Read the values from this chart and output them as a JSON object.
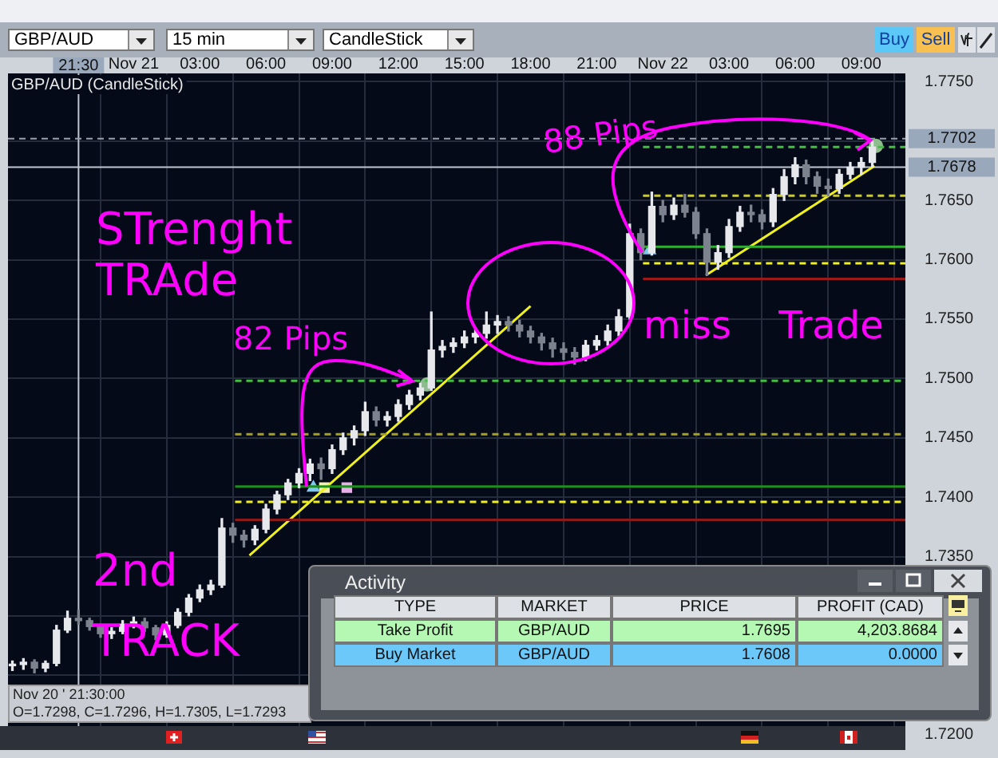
{
  "chart_data": {
    "type": "candlestick",
    "title": "GBP/AUD (CandleStick)",
    "x": [
      "--11-20T18:30",
      "--11-20T19:00",
      "--11-20T19:30",
      "--11-20T20:00",
      "--11-20T20:30",
      "--11-20T21:00",
      "--11-20T21:30",
      "--11-20T22:00",
      "--11-20T22:30",
      "--11-20T23:00",
      "--11-20T23:30",
      "--11-21T00:00",
      "--11-21T00:30",
      "--11-21T01:00",
      "--11-21T01:30",
      "--11-21T02:00",
      "--11-21T02:30",
      "--11-21T03:00",
      "--11-21T03:30",
      "--11-21T04:00",
      "--11-21T04:30",
      "--11-21T05:00",
      "--11-21T05:30",
      "--11-21T06:00",
      "--11-21T06:30",
      "--11-21T07:00",
      "--11-21T07:30",
      "--11-21T08:00",
      "--11-21T08:30",
      "--11-21T09:00",
      "--11-21T09:30",
      "--11-21T10:00",
      "--11-21T10:30",
      "--11-21T11:00",
      "--11-21T11:30",
      "--11-21T12:00",
      "--11-21T12:30",
      "--11-21T13:00",
      "--11-21T13:30",
      "--11-21T14:00",
      "--11-21T14:30",
      "--11-21T15:00",
      "--11-21T15:30",
      "--11-21T16:00",
      "--11-21T16:30",
      "--11-21T17:00",
      "--11-21T17:30",
      "--11-21T18:00",
      "--11-21T18:30",
      "--11-21T19:00",
      "--11-21T19:30",
      "--11-21T20:00",
      "--11-21T20:30",
      "--11-21T21:00",
      "--11-21T21:30",
      "--11-21T22:00",
      "--11-21T22:30",
      "--11-21T23:00",
      "--11-21T23:30",
      "--11-22T00:00",
      "--11-22T00:30",
      "--11-22T01:00",
      "--11-22T01:30",
      "--11-22T02:00",
      "--11-22T02:30",
      "--11-22T03:00",
      "--11-22T03:30",
      "--11-22T04:00",
      "--11-22T04:30",
      "--11-22T05:00",
      "--11-22T05:30",
      "--11-22T06:00",
      "--11-22T06:30",
      "--11-22T07:00",
      "--11-22T07:30",
      "--11-22T08:00",
      "--11-22T08:30",
      "--11-22T09:00",
      "--11-22T09:30"
    ],
    "ohlc": [
      [
        1.7258,
        1.7262,
        1.7254,
        1.7259
      ],
      [
        1.7259,
        1.7264,
        1.7255,
        1.7261
      ],
      [
        1.7261,
        1.7263,
        1.7252,
        1.7256
      ],
      [
        1.7256,
        1.7262,
        1.7253,
        1.726
      ],
      [
        1.726,
        1.7292,
        1.7258,
        1.7288
      ],
      [
        1.7288,
        1.7304,
        1.7286,
        1.7298
      ],
      [
        1.7298,
        1.7305,
        1.7293,
        1.7296
      ],
      [
        1.7296,
        1.7298,
        1.7288,
        1.7291
      ],
      [
        1.7291,
        1.7293,
        1.7282,
        1.7285
      ],
      [
        1.7285,
        1.729,
        1.7281,
        1.7287
      ],
      [
        1.7287,
        1.7296,
        1.7285,
        1.7293
      ],
      [
        1.7293,
        1.7299,
        1.729,
        1.7295
      ],
      [
        1.7295,
        1.7298,
        1.7287,
        1.729
      ],
      [
        1.729,
        1.7292,
        1.728,
        1.7284
      ],
      [
        1.7284,
        1.7295,
        1.7282,
        1.7292
      ],
      [
        1.7292,
        1.7306,
        1.729,
        1.7303
      ],
      [
        1.7303,
        1.7318,
        1.73,
        1.7315
      ],
      [
        1.7315,
        1.7326,
        1.7312,
        1.7322
      ],
      [
        1.7322,
        1.733,
        1.7318,
        1.7326
      ],
      [
        1.7326,
        1.7382,
        1.7324,
        1.7374
      ],
      [
        1.7374,
        1.7378,
        1.7362,
        1.7368
      ],
      [
        1.7368,
        1.7372,
        1.7358,
        1.7364
      ],
      [
        1.7364,
        1.7376,
        1.736,
        1.7373
      ],
      [
        1.7373,
        1.7394,
        1.737,
        1.739
      ],
      [
        1.739,
        1.7405,
        1.7386,
        1.7402
      ],
      [
        1.7402,
        1.7415,
        1.7398,
        1.7412
      ],
      [
        1.7412,
        1.7424,
        1.7408,
        1.742
      ],
      [
        1.742,
        1.7432,
        1.7414,
        1.7428
      ],
      [
        1.7428,
        1.7433,
        1.7415,
        1.7424
      ],
      [
        1.7424,
        1.7444,
        1.742,
        1.744
      ],
      [
        1.744,
        1.7454,
        1.7436,
        1.745
      ],
      [
        1.745,
        1.746,
        1.7444,
        1.7456
      ],
      [
        1.7456,
        1.748,
        1.7452,
        1.7472
      ],
      [
        1.7472,
        1.7476,
        1.746,
        1.7465
      ],
      [
        1.7465,
        1.7472,
        1.746,
        1.7468
      ],
      [
        1.7468,
        1.7482,
        1.7464,
        1.7478
      ],
      [
        1.7478,
        1.749,
        1.7474,
        1.7486
      ],
      [
        1.7486,
        1.7496,
        1.7482,
        1.7492
      ],
      [
        1.7492,
        1.7556,
        1.749,
        1.7524
      ],
      [
        1.7524,
        1.7532,
        1.7518,
        1.7527
      ],
      [
        1.7527,
        1.7534,
        1.7522,
        1.753
      ],
      [
        1.753,
        1.754,
        1.7526,
        1.7535
      ],
      [
        1.7535,
        1.7542,
        1.753,
        1.7538
      ],
      [
        1.7538,
        1.7556,
        1.7534,
        1.7545
      ],
      [
        1.7545,
        1.7553,
        1.7538,
        1.7548
      ],
      [
        1.7548,
        1.7552,
        1.754,
        1.7545
      ],
      [
        1.7545,
        1.7549,
        1.7535,
        1.754
      ],
      [
        1.754,
        1.7544,
        1.753,
        1.7535
      ],
      [
        1.7535,
        1.7538,
        1.7524,
        1.753
      ],
      [
        1.753,
        1.7534,
        1.7518,
        1.7525
      ],
      [
        1.7525,
        1.753,
        1.7516,
        1.7522
      ],
      [
        1.7522,
        1.7526,
        1.7512,
        1.7518
      ],
      [
        1.7518,
        1.7532,
        1.7515,
        1.7528
      ],
      [
        1.7528,
        1.7536,
        1.7524,
        1.7532
      ],
      [
        1.7532,
        1.7545,
        1.7528,
        1.754
      ],
      [
        1.754,
        1.7558,
        1.7536,
        1.7552
      ],
      [
        1.7552,
        1.763,
        1.755,
        1.7622
      ],
      [
        1.7622,
        1.7626,
        1.76,
        1.7606
      ],
      [
        1.7606,
        1.7657,
        1.7604,
        1.7645
      ],
      [
        1.7645,
        1.765,
        1.7632,
        1.7638
      ],
      [
        1.7638,
        1.7652,
        1.7634,
        1.7646
      ],
      [
        1.7646,
        1.7655,
        1.7636,
        1.764
      ],
      [
        1.764,
        1.7644,
        1.7618,
        1.7622
      ],
      [
        1.7622,
        1.7626,
        1.7587,
        1.7598
      ],
      [
        1.7598,
        1.7612,
        1.7592,
        1.7606
      ],
      [
        1.7606,
        1.7634,
        1.7602,
        1.7628
      ],
      [
        1.7628,
        1.7645,
        1.7624,
        1.764
      ],
      [
        1.764,
        1.7646,
        1.7632,
        1.7638
      ],
      [
        1.7638,
        1.7642,
        1.7626,
        1.7632
      ],
      [
        1.7632,
        1.766,
        1.7628,
        1.7655
      ],
      [
        1.7655,
        1.7676,
        1.765,
        1.767
      ],
      [
        1.767,
        1.7686,
        1.7664,
        1.768
      ],
      [
        1.768,
        1.7684,
        1.7664,
        1.767
      ],
      [
        1.767,
        1.7674,
        1.7656,
        1.7662
      ],
      [
        1.7662,
        1.7668,
        1.7654,
        1.766
      ],
      [
        1.766,
        1.7676,
        1.7656,
        1.7672
      ],
      [
        1.7672,
        1.7682,
        1.7668,
        1.7678
      ],
      [
        1.7678,
        1.7686,
        1.7672,
        1.7682
      ],
      [
        1.7682,
        1.77,
        1.7678,
        1.7695
      ]
    ],
    "colors": [
      "#e6e8ec",
      "#e6e8ec",
      "#7d838e",
      "#e6e8ec",
      "#e6e8ec",
      "#e6e8ec",
      "#7d838e",
      "#7d838e",
      "#7d838e",
      "#e6e8ec",
      "#e6e8ec",
      "#e6e8ec",
      "#7d838e",
      "#7d838e",
      "#e6e8ec",
      "#e6e8ec",
      "#e6e8ec",
      "#e6e8ec",
      "#e6e8ec",
      "#e6e8ec",
      "#7d838e",
      "#7d838e",
      "#e6e8ec",
      "#e6e8ec",
      "#e6e8ec",
      "#e6e8ec",
      "#e6e8ec",
      "#e6e8ec",
      "#7d838e",
      "#e6e8ec",
      "#e6e8ec",
      "#e6e8ec",
      "#e6e8ec",
      "#7d838e",
      "#e6e8ec",
      "#e6e8ec",
      "#e6e8ec",
      "#e6e8ec",
      "#e6e8ec",
      "#e6e8ec",
      "#e6e8ec",
      "#e6e8ec",
      "#e6e8ec",
      "#e6e8ec",
      "#e6e8ec",
      "#7d838e",
      "#7d838e",
      "#7d838e",
      "#7d838e",
      "#7d838e",
      "#7d838e",
      "#7d838e",
      "#e6e8ec",
      "#e6e8ec",
      "#e6e8ec",
      "#e6e8ec",
      "#e6e8ec",
      "#7d838e",
      "#e6e8ec",
      "#7d838e",
      "#e6e8ec",
      "#7d838e",
      "#7d838e",
      "#7d838e",
      "#e6e8ec",
      "#e6e8ec",
      "#e6e8ec",
      "#7d838e",
      "#7d838e",
      "#e6e8ec",
      "#e6e8ec",
      "#e6e8ec",
      "#7d838e",
      "#7d838e",
      "#7d838e",
      "#e6e8ec",
      "#e6e8ec",
      "#e6e8ec",
      "#e6e8ec"
    ],
    "series": [
      {
        "type": "line",
        "color": "#1e8e1e",
        "x": [
          "--11-21T04:36",
          "--11-22T11:00"
        ],
        "values": [
          1.7409,
          1.7409
        ]
      },
      {
        "type": "line",
        "color": "#f0f020",
        "line_style": "dashed",
        "x": [
          "--11-21T04:36",
          "--11-22T11:00"
        ],
        "values": [
          1.7396,
          1.7396
        ]
      },
      {
        "type": "line",
        "color": "#8b1a1a",
        "x": [
          "--11-21T04:36",
          "--11-22T11:00"
        ],
        "values": [
          1.7381,
          1.7381
        ]
      },
      {
        "type": "line",
        "color": "#40c040",
        "line_style": "dashed",
        "x": [
          "--11-21T04:36",
          "--11-22T11:00"
        ],
        "values": [
          1.7498,
          1.7498
        ]
      },
      {
        "type": "line",
        "color": "#a8a020",
        "line_style": "dashed",
        "x": [
          "--11-21T04:36",
          "--11-22T11:00"
        ],
        "values": [
          1.7453,
          1.7453
        ]
      },
      {
        "type": "line",
        "color": "#30b030",
        "x": [
          "--11-21T23:06",
          "--11-22T11:00"
        ],
        "values": [
          1.7611,
          1.7611
        ]
      },
      {
        "type": "line",
        "color": "#f0f020",
        "line_style": "dashed",
        "x": [
          "--11-21T23:06",
          "--11-22T11:00"
        ],
        "values": [
          1.7597,
          1.7597
        ]
      },
      {
        "type": "line",
        "color": "#9a1a1a",
        "x": [
          "--11-21T23:06",
          "--11-22T11:00"
        ],
        "values": [
          1.7584,
          1.7584
        ]
      },
      {
        "type": "line",
        "color": "#c8c840",
        "line_style": "dashed",
        "x": [
          "--11-21T23:06",
          "--11-22T11:00"
        ],
        "values": [
          1.7654,
          1.7654
        ]
      },
      {
        "type": "line",
        "color": "#40c040",
        "line_style": "dashed",
        "x": [
          "--11-21T23:06",
          "--11-22T11:00"
        ],
        "values": [
          1.7695,
          1.7695
        ]
      },
      {
        "type": "line",
        "color": "#f0f020",
        "x": [
          "--11-21T05:15",
          "--11-21T18:00"
        ],
        "values": [
          1.7351,
          1.7561
        ]
      },
      {
        "type": "line",
        "color": "#f0f020",
        "x": [
          "--11-22T01:57",
          "--11-22T09:36"
        ],
        "values": [
          1.7587,
          1.7679
        ]
      },
      {
        "type": "scatter",
        "marker": "triangle",
        "color": "#7ec8f0",
        "x": [
          "--11-21T08:09",
          "--11-21T23:24"
        ],
        "values": [
          1.7408,
          1.7608
        ]
      },
      {
        "type": "scatter",
        "marker": "square",
        "color": "#f4eeb0",
        "x": [
          "--11-21T08:39"
        ],
        "values": [
          1.7408
        ]
      },
      {
        "type": "scatter",
        "marker": "square",
        "color": "#e8b0e8",
        "x": [
          "--11-21T09:40"
        ],
        "values": [
          1.7408
        ]
      },
      {
        "type": "scatter",
        "marker": "circle",
        "color": "#8fbc8f",
        "x": [
          "--11-21T13:18",
          "--11-22T09:40"
        ],
        "values": [
          1.7495,
          1.7696
        ]
      }
    ],
    "xlim": [
      "--11-20T18:18",
      "--11-22T11:00"
    ],
    "xticks": [
      {
        "value": "--11-21T00:00",
        "label": "Nov 21"
      },
      {
        "value": "--11-21T03:00",
        "label": "03:00"
      },
      {
        "value": "--11-21T06:00",
        "label": "06:00"
      },
      {
        "value": "--11-21T09:00",
        "label": "09:00"
      },
      {
        "value": "--11-21T12:00",
        "label": "12:00"
      },
      {
        "value": "--11-21T15:00",
        "label": "15:00"
      },
      {
        "value": "--11-21T18:00",
        "label": "18:00"
      },
      {
        "value": "--11-21T21:00",
        "label": "21:00"
      },
      {
        "value": "--11-22T00:00",
        "label": "Nov 22"
      },
      {
        "value": "--11-22T03:00",
        "label": "03:00"
      },
      {
        "value": "--11-22T06:00",
        "label": "06:00"
      },
      {
        "value": "--11-22T09:00",
        "label": "09:00"
      }
    ],
    "ylim": [
      1.7187,
      1.7757
    ],
    "yticks": [
      {
        "value": 1.72,
        "label": "1.7200"
      },
      {
        "value": 1.725,
        "label": null
      },
      {
        "value": 1.73,
        "label": null
      },
      {
        "value": 1.735,
        "label": "1.7350"
      },
      {
        "value": 1.74,
        "label": "1.7400"
      },
      {
        "value": 1.745,
        "label": "1.7450"
      },
      {
        "value": 1.75,
        "label": "1.7500"
      },
      {
        "value": 1.755,
        "label": "1.7550"
      },
      {
        "value": 1.76,
        "label": "1.7600"
      },
      {
        "value": 1.765,
        "label": "1.7650"
      },
      {
        "value": 1.77,
        "label": null
      },
      {
        "value": 1.775,
        "label": "1.7750"
      }
    ],
    "grid": true,
    "ref_lines": [
      {
        "axis": "x",
        "value": "--11-20T21:30",
        "label": "21:30",
        "color": "#c0c6d0"
      },
      {
        "axis": "y",
        "value": 1.7678,
        "label": "1.7678",
        "color": "#c0c6d0"
      },
      {
        "axis": "y",
        "value": 1.7702,
        "label": "1.7702",
        "color": "#9aa2b0",
        "line_style": "dashed"
      }
    ],
    "annotations": [
      "GBP/AUD",
      "15 min",
      "CandleStick",
      "Buy",
      "Sell",
      "STrenght TRAde",
      {
        "text": "82 Pips",
        "x": "--11-21T13:18",
        "y": 1.7495
      },
      "88 Pips",
      "miss Trade",
      "2nd TRACK",
      "Nov 20 ' 21:30:00",
      "O=1.7298, C=1.7296, H=1.7305, L=1.7293",
      "Activity",
      "TYPE",
      "MARKET",
      "PRICE",
      "PROFIT (CAD)",
      "Take Profit",
      "GBP/AUD",
      "1.7695",
      "4,203.8684",
      "Buy Market",
      "GBP/AUD",
      "1.7608",
      "0.0000"
    ]
  }
}
